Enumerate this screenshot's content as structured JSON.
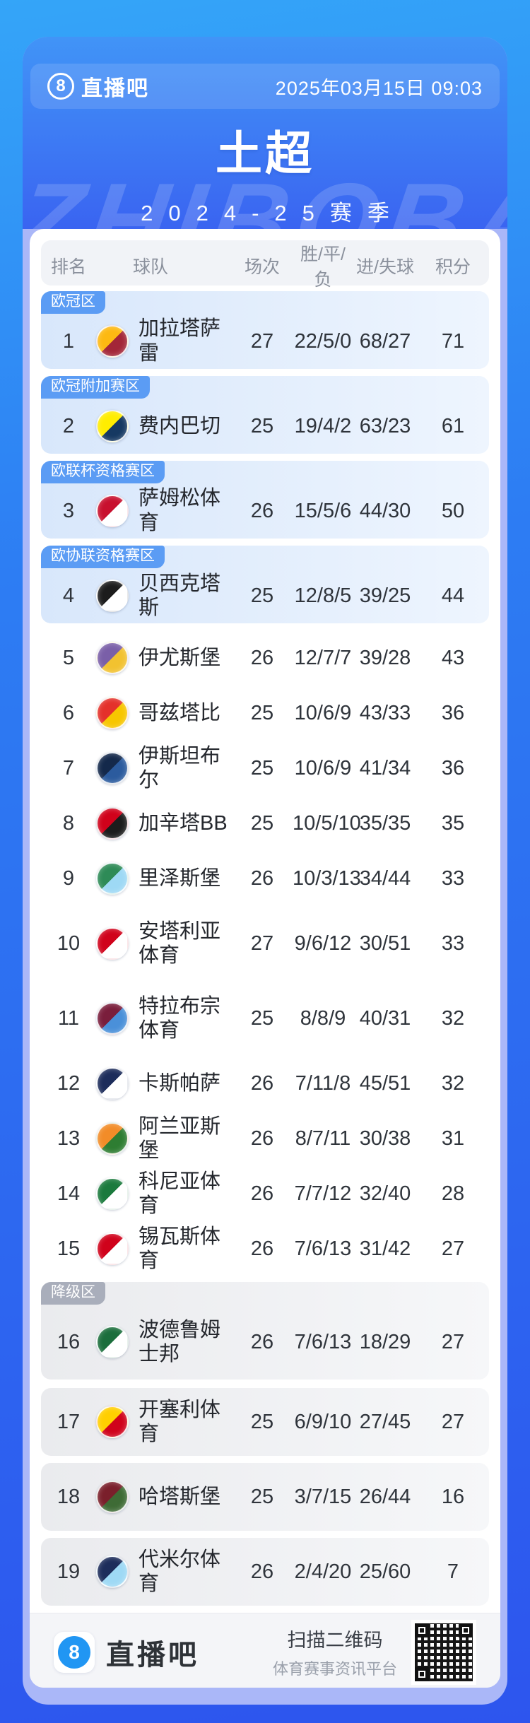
{
  "header": {
    "logo_icon": "8",
    "logo_text": "直播吧",
    "datetime": "2025年03月15日 09:03"
  },
  "hero": {
    "title": "土超",
    "season": "2024-25赛季",
    "watermark": "ZHIBOBA"
  },
  "table": {
    "columns": [
      "排名",
      "球队",
      "场次",
      "胜/平/负",
      "进/失球",
      "积分"
    ],
    "zone_colors": {
      "europe_blue": "#5b9cf4",
      "relegation_gray": "#a9aebb"
    },
    "highlight_colors": {
      "blue_block": "#d8e7fb",
      "gray_block": "#eaebee"
    },
    "rows": [
      {
        "rank": "1",
        "team": "加拉塔萨雷",
        "zone": "欧冠区",
        "zone_style": "blue",
        "block": "blue",
        "played": "27",
        "wdl": "22/5/0",
        "goals": "68/27",
        "points": "71",
        "logo": [
          "#fdb912",
          "#a32638"
        ]
      },
      {
        "rank": "2",
        "team": "费内巴切",
        "zone": "欧冠附加赛区",
        "zone_style": "blue",
        "block": "blue",
        "played": "25",
        "wdl": "19/4/2",
        "goals": "63/23",
        "points": "61",
        "logo": [
          "#ffed00",
          "#163962"
        ]
      },
      {
        "rank": "3",
        "team": "萨姆松体育",
        "zone": "欧联杯资格赛区",
        "zone_style": "blue",
        "block": "blue",
        "played": "26",
        "wdl": "15/5/6",
        "goals": "44/30",
        "points": "50",
        "logo": [
          "#c8102e",
          "#ffffff"
        ]
      },
      {
        "rank": "4",
        "team": "贝西克塔斯",
        "zone": "欧协联资格赛区",
        "zone_style": "blue",
        "block": "blue",
        "played": "25",
        "wdl": "12/8/5",
        "goals": "39/25",
        "points": "44",
        "logo": [
          "#1c1c1c",
          "#ffffff"
        ]
      },
      {
        "rank": "5",
        "team": "伊尤斯堡",
        "zone": null,
        "block": null,
        "played": "26",
        "wdl": "12/7/7",
        "goals": "39/28",
        "points": "43",
        "logo": [
          "#7a5fa8",
          "#f2c230"
        ]
      },
      {
        "rank": "6",
        "team": "哥兹塔比",
        "zone": null,
        "block": null,
        "played": "25",
        "wdl": "10/6/9",
        "goals": "43/33",
        "points": "36",
        "logo": [
          "#e4312b",
          "#f7c600"
        ]
      },
      {
        "rank": "7",
        "team": "伊斯坦布尔",
        "zone": null,
        "block": null,
        "played": "25",
        "wdl": "10/6/9",
        "goals": "41/34",
        "points": "36",
        "logo": [
          "#14294b",
          "#2b5b9e"
        ]
      },
      {
        "rank": "8",
        "team": "加辛塔BB",
        "zone": null,
        "block": null,
        "played": "25",
        "wdl": "10/5/10",
        "goals": "35/35",
        "points": "35",
        "logo": [
          "#d0021b",
          "#1c1c1c"
        ]
      },
      {
        "rank": "9",
        "team": "里泽斯堡",
        "zone": null,
        "block": null,
        "played": "26",
        "wdl": "10/3/13",
        "goals": "34/44",
        "points": "33",
        "logo": [
          "#2e8b57",
          "#9ed9f5"
        ]
      },
      {
        "rank": "10",
        "team": "安塔利亚体育",
        "zone": null,
        "block": null,
        "tall": true,
        "played": "27",
        "wdl": "9/6/12",
        "goals": "30/51",
        "points": "33",
        "logo": [
          "#d0021b",
          "#ffffff"
        ]
      },
      {
        "rank": "11",
        "team": "特拉布宗体育",
        "zone": null,
        "block": null,
        "tall": true,
        "played": "25",
        "wdl": "8/8/9",
        "goals": "40/31",
        "points": "32",
        "logo": [
          "#7a1e3c",
          "#4a90d9"
        ]
      },
      {
        "rank": "12",
        "team": "卡斯帕萨",
        "zone": null,
        "block": null,
        "played": "26",
        "wdl": "7/11/8",
        "goals": "45/51",
        "points": "32",
        "logo": [
          "#1d2d5b",
          "#ffffff"
        ]
      },
      {
        "rank": "13",
        "team": "阿兰亚斯堡",
        "zone": null,
        "block": null,
        "played": "26",
        "wdl": "8/7/11",
        "goals": "30/38",
        "points": "31",
        "logo": [
          "#f28c28",
          "#2e7d32"
        ]
      },
      {
        "rank": "14",
        "team": "科尼亚体育",
        "zone": null,
        "block": null,
        "played": "26",
        "wdl": "7/7/12",
        "goals": "32/40",
        "points": "28",
        "logo": [
          "#1b7a3d",
          "#ffffff"
        ]
      },
      {
        "rank": "15",
        "team": "锡瓦斯体育",
        "zone": null,
        "block": null,
        "played": "26",
        "wdl": "7/6/13",
        "goals": "31/42",
        "points": "27",
        "logo": [
          "#d0021b",
          "#ffffff"
        ]
      },
      {
        "rank": "16",
        "team": "波德鲁姆士邦",
        "zone": "降级区",
        "zone_style": "gray",
        "block": "gray",
        "tall": true,
        "played": "26",
        "wdl": "7/6/13",
        "goals": "18/29",
        "points": "27",
        "logo": [
          "#1b6e3c",
          "#ffffff"
        ]
      },
      {
        "rank": "17",
        "team": "开塞利体育",
        "zone": null,
        "block": "gray",
        "played": "25",
        "wdl": "6/9/10",
        "goals": "27/45",
        "points": "27",
        "logo": [
          "#ffcf00",
          "#d0021b"
        ]
      },
      {
        "rank": "18",
        "team": "哈塔斯堡",
        "zone": null,
        "block": "gray",
        "played": "25",
        "wdl": "3/7/15",
        "goals": "26/44",
        "points": "16",
        "logo": [
          "#7a1f2b",
          "#3e6b35"
        ]
      },
      {
        "rank": "19",
        "team": "代米尔体育",
        "zone": null,
        "block": "gray",
        "played": "26",
        "wdl": "2/4/20",
        "goals": "25/60",
        "points": "7",
        "logo": [
          "#1d2d5b",
          "#9ed9f5"
        ]
      }
    ]
  },
  "footer": {
    "logo_icon": "8",
    "logo_text": "直播吧",
    "scan_text": "扫描二维码",
    "platform_text": "体育赛事资讯平台"
  },
  "colors": {
    "page_bg_top": "#34a5f8",
    "page_bg_bottom": "#2d55ee",
    "card_rim": "#aab7f8",
    "hero_top": "#4194f7",
    "hero_bottom": "#3a64f1",
    "accent_blue": "#5b9cf4"
  }
}
